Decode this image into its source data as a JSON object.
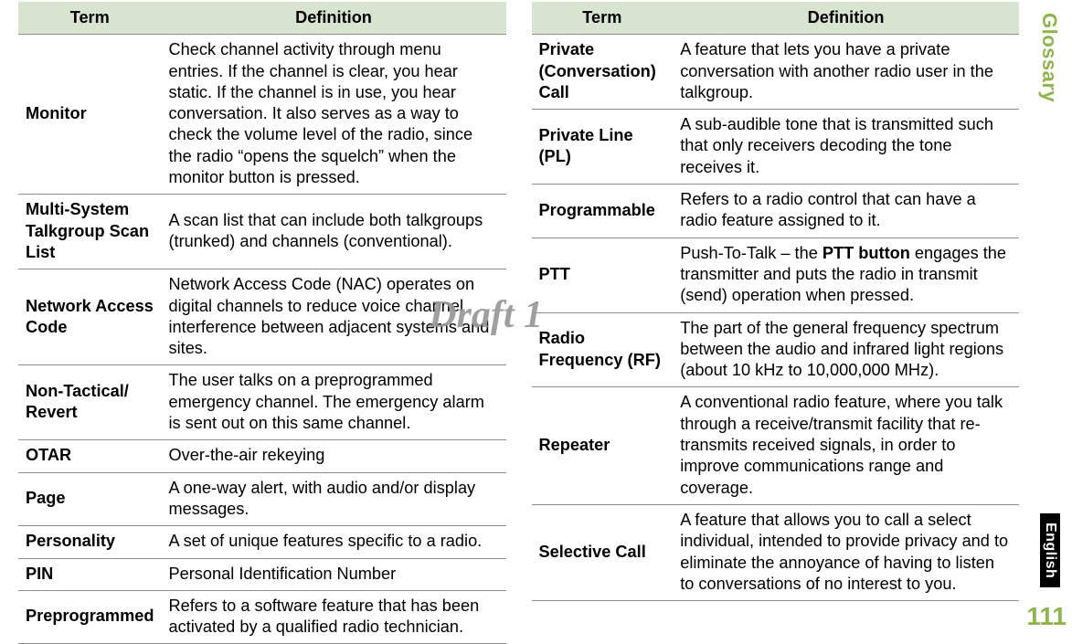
{
  "sideTab": "Glossary",
  "englishTab": "English",
  "pageNumber": "111",
  "watermark": "Draft 1",
  "headers": {
    "term": "Term",
    "definition": "Definition"
  },
  "leftRows": [
    {
      "term": "Monitor",
      "def": "Check channel activity through menu entries. If the channel is clear, you hear static. If the channel is in use, you hear conversation. It also serves as a way to check the volume level of the radio, since the radio “opens the squelch” when the monitor button is pressed."
    },
    {
      "term": "Multi-System Talkgroup Scan List",
      "def": "A scan list that can include both talkgroups (trunked) and channels (conventional)."
    },
    {
      "term": "Network Access Code",
      "def": "Network Access Code (NAC) operates on digital channels to reduce voice channel interference between adjacent systems and sites."
    },
    {
      "term": "Non-Tactical/ Revert",
      "def": "The user talks on a preprogrammed emergency channel. The emergency alarm is sent out on this same channel."
    },
    {
      "term": "OTAR",
      "def": "Over-the-air rekeying"
    },
    {
      "term": "Page",
      "def": "A one-way alert, with audio and/or display messages."
    },
    {
      "term": "Personality",
      "def": "A set of unique features specific to a radio."
    },
    {
      "term": "PIN",
      "def": "Personal Identification Number"
    },
    {
      "term": "Preprogrammed",
      "def": "Refers to a software feature that has been activated by a qualified radio technician."
    }
  ],
  "rightRows": [
    {
      "term": "Private (Conversation) Call",
      "def": "A feature that lets you have a private conversation with another radio user in the talkgroup."
    },
    {
      "term": "Private Line (PL)",
      "def": "A sub-audible tone that is transmitted such that only receivers decoding the tone receives it."
    },
    {
      "term": "Programmable",
      "def": "Refers to a radio control that can have a radio feature assigned to it."
    },
    {
      "term": "PTT",
      "defPre": "Push-To-Talk – the ",
      "defBold": "PTT button",
      "defPost": " engages the transmitter and puts the radio in transmit (send) operation when pressed."
    },
    {
      "term": "Radio Frequency (RF)",
      "def": "The part of the general frequency spectrum between the audio and infrared light regions (about 10 kHz to 10,000,000 MHz)."
    },
    {
      "term": "Repeater",
      "def": "A conventional radio feature, where you talk through a receive/transmit facility that re-transmits received signals, in order to improve communications range and coverage."
    },
    {
      "term": "Selective Call",
      "def": "A feature that allows you to call a select individual, intended to provide privacy and to eliminate the annoyance of having to listen to conversations of no interest to you."
    }
  ]
}
